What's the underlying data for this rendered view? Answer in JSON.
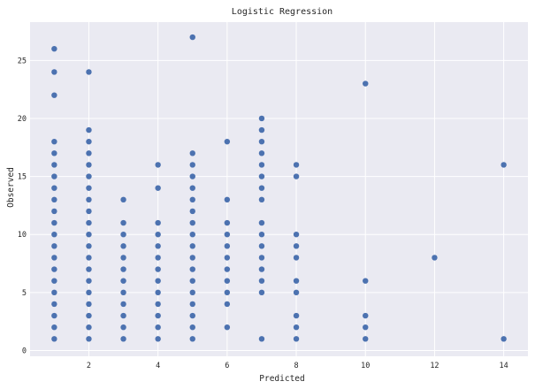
{
  "chart_data": {
    "type": "scatter",
    "title": "Logistic Regression",
    "xlabel": "Predicted",
    "ylabel": "Observed",
    "xlim": [
      0.3,
      14.7
    ],
    "ylim": [
      -0.5,
      28.3
    ],
    "xticks": [
      2,
      4,
      6,
      8,
      10,
      12,
      14
    ],
    "yticks": [
      0,
      5,
      10,
      15,
      20,
      25
    ],
    "grid": true,
    "background_color": "#eaeaf2",
    "marker_color": "#4c72b0",
    "points_by_x": [
      {
        "x": 1,
        "y": [
          1,
          2,
          3,
          4,
          5,
          6,
          7,
          8,
          9,
          10,
          11,
          12,
          13,
          14,
          15,
          16,
          17,
          18,
          22,
          24,
          26
        ]
      },
      {
        "x": 2,
        "y": [
          1,
          2,
          3,
          4,
          5,
          6,
          7,
          8,
          9,
          10,
          11,
          12,
          13,
          14,
          15,
          16,
          17,
          18,
          19,
          24
        ]
      },
      {
        "x": 3,
        "y": [
          1,
          2,
          3,
          4,
          5,
          6,
          7,
          8,
          9,
          10,
          11,
          13
        ]
      },
      {
        "x": 4,
        "y": [
          1,
          2,
          3,
          4,
          5,
          6,
          7,
          8,
          9,
          10,
          11,
          14,
          16
        ]
      },
      {
        "x": 5,
        "y": [
          1,
          2,
          3,
          4,
          5,
          6,
          7,
          8,
          9,
          10,
          11,
          12,
          13,
          14,
          15,
          16,
          17,
          27
        ]
      },
      {
        "x": 6,
        "y": [
          2,
          4,
          5,
          6,
          7,
          8,
          9,
          10,
          11,
          13,
          18
        ]
      },
      {
        "x": 7,
        "y": [
          1,
          5,
          6,
          7,
          8,
          9,
          10,
          11,
          13,
          14,
          15,
          16,
          17,
          18,
          19,
          20
        ]
      },
      {
        "x": 8,
        "y": [
          1,
          2,
          3,
          5,
          6,
          8,
          9,
          10,
          15,
          16
        ]
      },
      {
        "x": 10,
        "y": [
          1,
          2,
          3,
          6,
          23
        ]
      },
      {
        "x": 12,
        "y": [
          8
        ]
      },
      {
        "x": 14,
        "y": [
          1,
          16
        ]
      }
    ]
  }
}
